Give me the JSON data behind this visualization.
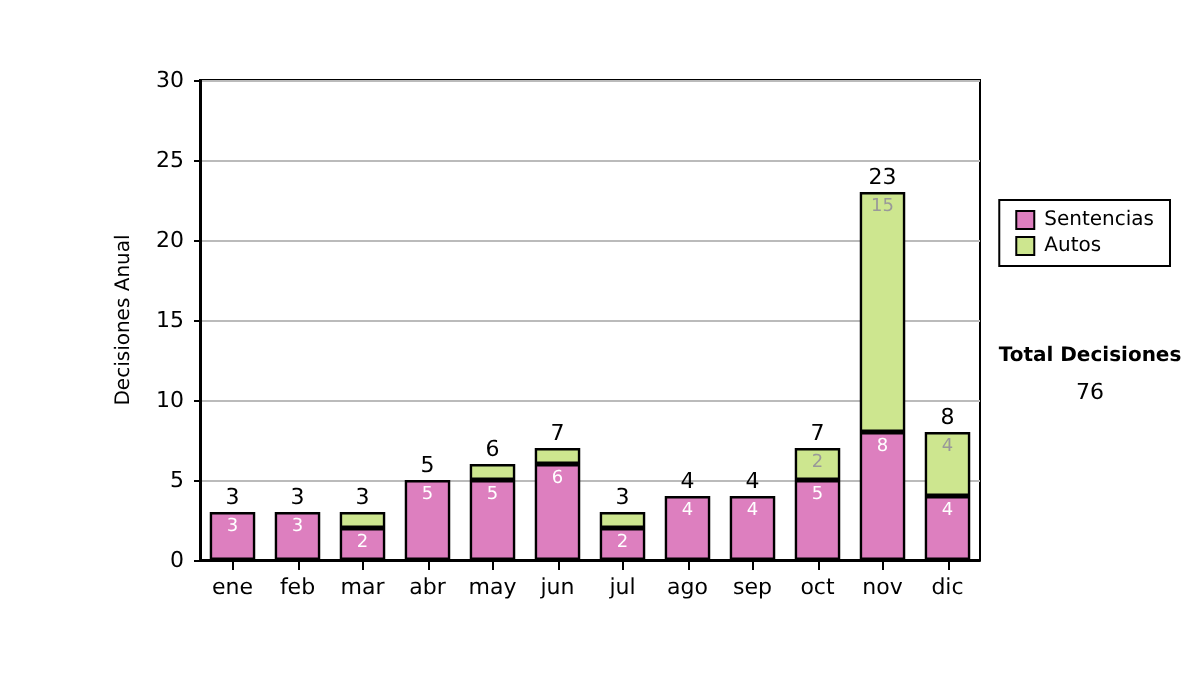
{
  "chart_data": {
    "type": "bar",
    "stacked": true,
    "ylabel": "Decisiones Anual",
    "categories": [
      "ene",
      "feb",
      "mar",
      "abr",
      "may",
      "jun",
      "jul",
      "ago",
      "sep",
      "oct",
      "nov",
      "dic"
    ],
    "series": [
      {
        "name": "Sentencias",
        "color": "#dd7fbf",
        "values": [
          3,
          3,
          2,
          5,
          5,
          6,
          2,
          4,
          4,
          5,
          8,
          4
        ],
        "value_labels": [
          "3",
          "3",
          "2",
          "5",
          "5",
          "6",
          "2",
          "4",
          "4",
          "5",
          "8",
          "4"
        ]
      },
      {
        "name": "Autos",
        "color": "#cde68f",
        "values": [
          0,
          0,
          1,
          0,
          1,
          1,
          1,
          0,
          0,
          2,
          15,
          4
        ],
        "value_labels": [
          null,
          null,
          null,
          null,
          null,
          null,
          null,
          null,
          null,
          "2",
          "15",
          "4"
        ]
      }
    ],
    "totals": [
      "3",
      "3",
      "3",
      "5",
      "6",
      "7",
      "3",
      "4",
      "4",
      "7",
      "23",
      "8"
    ],
    "ylim": [
      0,
      30
    ],
    "yticks": [
      0,
      5,
      10,
      15,
      20,
      25,
      30
    ],
    "grid": "y",
    "legend": "right",
    "annotations": [
      "Total Decisiones",
      "76"
    ]
  }
}
